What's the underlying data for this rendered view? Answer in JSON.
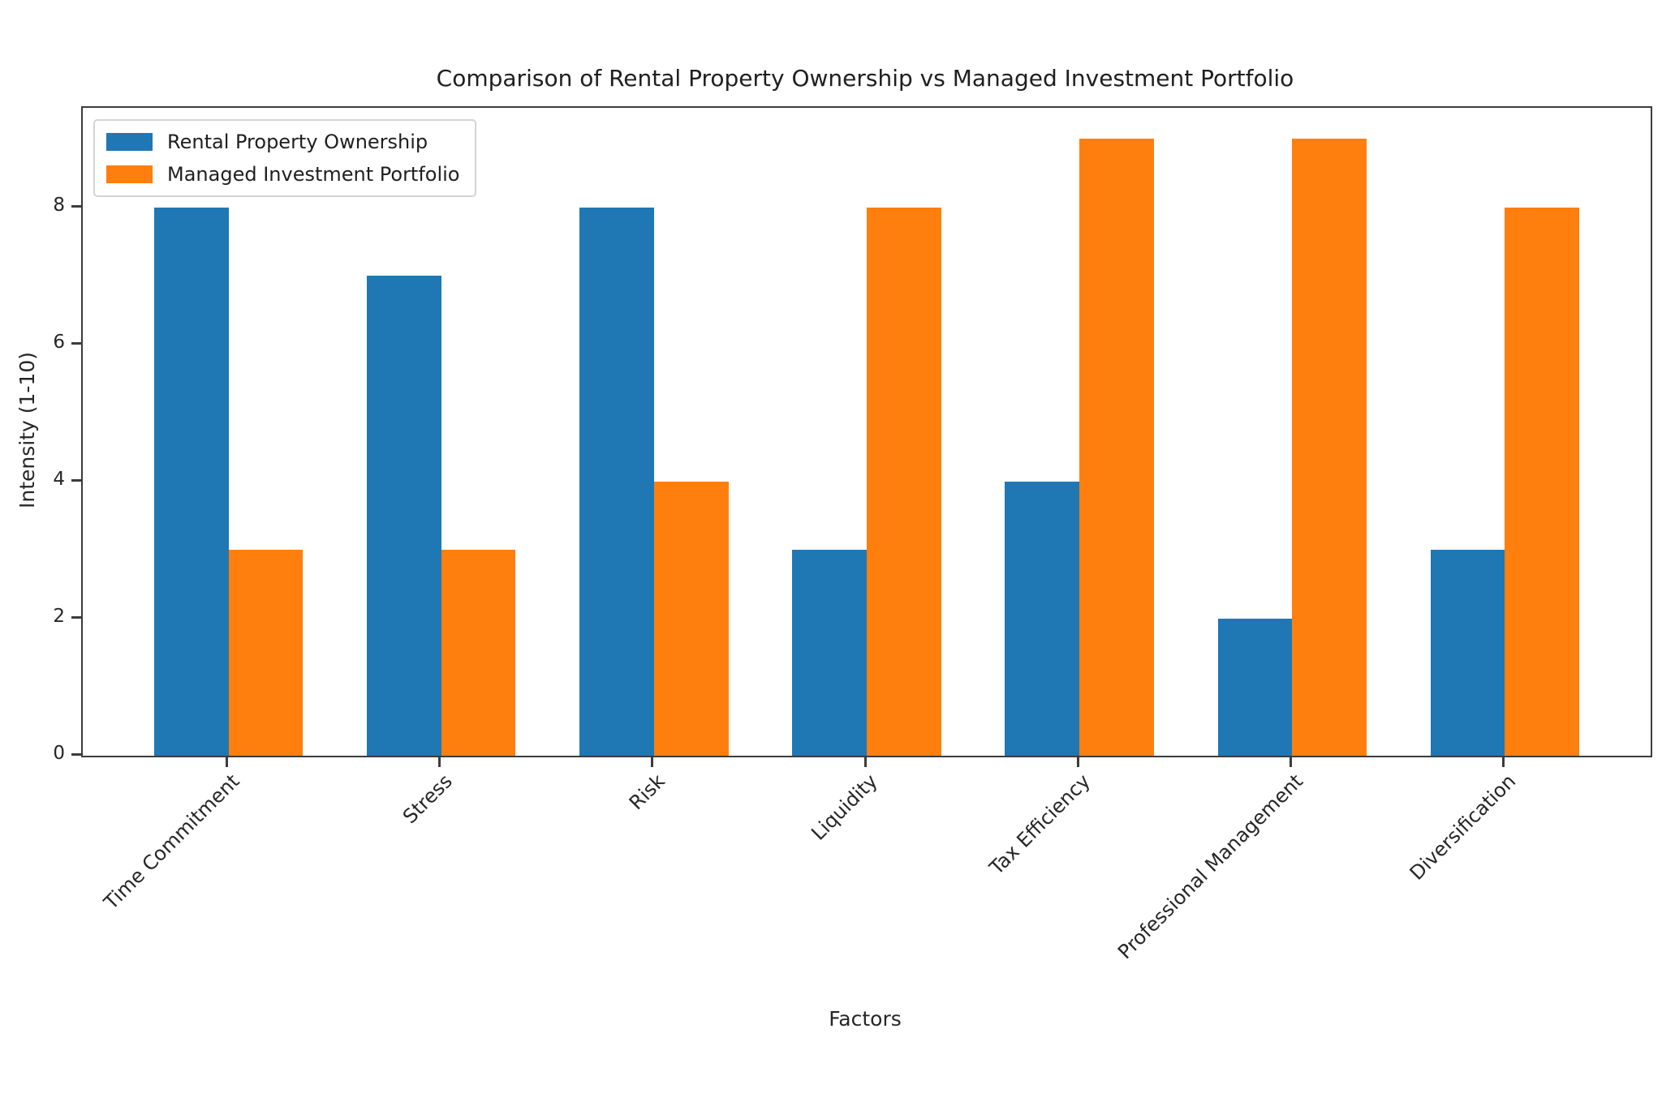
{
  "chart_data": {
    "type": "bar",
    "title": "Comparison of Rental Property Ownership vs Managed Investment Portfolio",
    "xlabel": "Factors",
    "ylabel": "Intensity (1-10)",
    "categories": [
      "Time Commitment",
      "Stress",
      "Risk",
      "Liquidity",
      "Tax Efficiency",
      "Professional Management",
      "Diversification"
    ],
    "series": [
      {
        "name": "Rental Property Ownership",
        "color": "#1f77b4",
        "values": [
          8,
          7,
          8,
          3,
          4,
          2,
          3
        ]
      },
      {
        "name": "Managed Investment Portfolio",
        "color": "#ff7f0e",
        "values": [
          3,
          3,
          4,
          8,
          9,
          9,
          8
        ]
      }
    ],
    "yticks": [
      0,
      2,
      4,
      6,
      8
    ],
    "ylim": [
      0,
      9.45
    ],
    "xlim": [
      -0.685,
      6.685
    ],
    "bar_width": 0.35,
    "grid": false,
    "legend_position": "upper-left"
  }
}
